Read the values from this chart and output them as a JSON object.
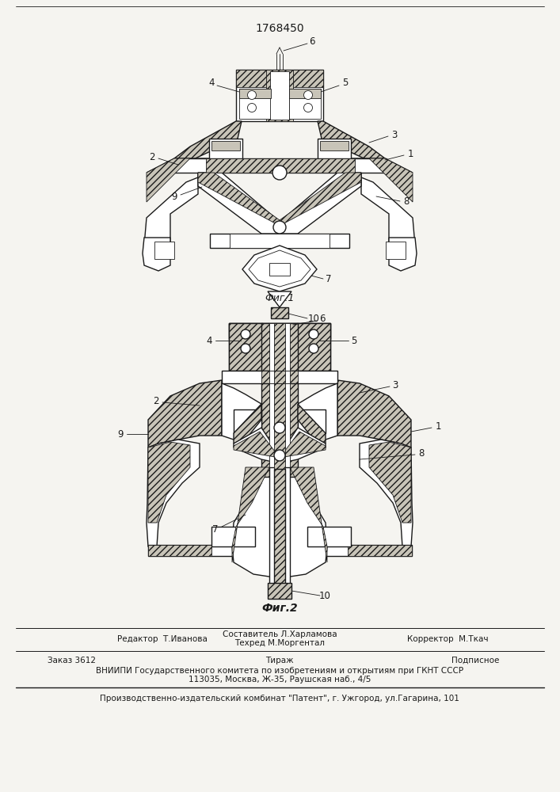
{
  "patent_number": "1768450",
  "fig1_label": "Фиг.1",
  "fig2_label": "Фиг.2",
  "editor_line": "Редактор  Т.Иванова",
  "composer_line1": "Составитель Л.Харламова",
  "composer_line2": "Техред М.Моргентал",
  "corrector_line": "Корректор  М.Ткач",
  "order_line": "Заказ 3612",
  "tirazh_line": "Тираж",
  "podpisnoe_line": "Подписное",
  "vniip_line": "ВНИИПИ Государственного комитета по изобретениям и открытиям при ГКНТ СССР",
  "address_line": "113035, Москва, Ж-35, Раушская наб., 4/5",
  "publisher_line": "Производственно-издательский комбинат \"Патент\", г. Ужгород, ул.Гагарина, 101",
  "bg_color": "#f5f4f0",
  "lc": "#1a1a1a",
  "white": "#ffffff",
  "hatch_gray": "#d8d4cc"
}
